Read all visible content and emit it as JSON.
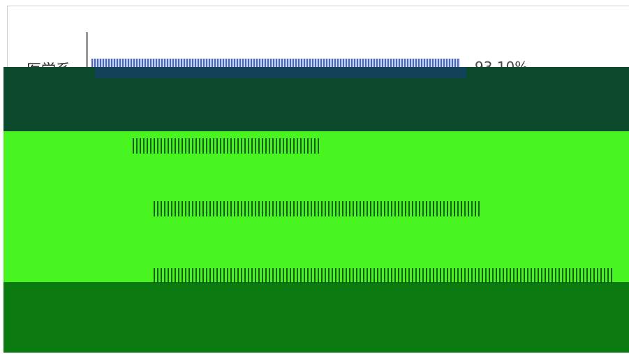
{
  "chart_data": {
    "type": "bar",
    "orientation": "horizontal",
    "categories": [
      "医学系"
    ],
    "series": [
      {
        "values": [
          93.1
        ],
        "labels": [
          "93.10%"
        ]
      }
    ],
    "colors": {
      "bar": "#4a64c8"
    }
  }
}
